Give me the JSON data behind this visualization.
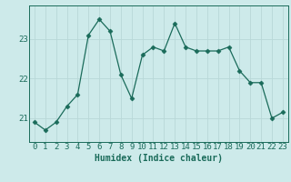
{
  "x": [
    0,
    1,
    2,
    3,
    4,
    5,
    6,
    7,
    8,
    9,
    10,
    11,
    12,
    13,
    14,
    15,
    16,
    17,
    18,
    19,
    20,
    21,
    22,
    23
  ],
  "y": [
    20.9,
    20.7,
    20.9,
    21.3,
    21.6,
    23.1,
    23.5,
    23.2,
    22.1,
    21.5,
    22.6,
    22.8,
    22.7,
    23.4,
    22.8,
    22.7,
    22.7,
    22.7,
    22.8,
    22.2,
    21.9,
    21.9,
    21.0,
    21.15
  ],
  "line_color": "#1a6b5a",
  "marker": "D",
  "marker_size": 2.5,
  "bg_color": "#cdeaea",
  "grid_color": "#b8d8d8",
  "axis_color": "#1a6b5a",
  "xlabel": "Humidex (Indice chaleur)",
  "ylim": [
    20.4,
    23.85
  ],
  "xlim": [
    -0.5,
    23.5
  ],
  "yticks": [
    21,
    22,
    23
  ],
  "xticks": [
    0,
    1,
    2,
    3,
    4,
    5,
    6,
    7,
    8,
    9,
    10,
    11,
    12,
    13,
    14,
    15,
    16,
    17,
    18,
    19,
    20,
    21,
    22,
    23
  ],
  "xlabel_fontsize": 7,
  "tick_fontsize": 6.5
}
